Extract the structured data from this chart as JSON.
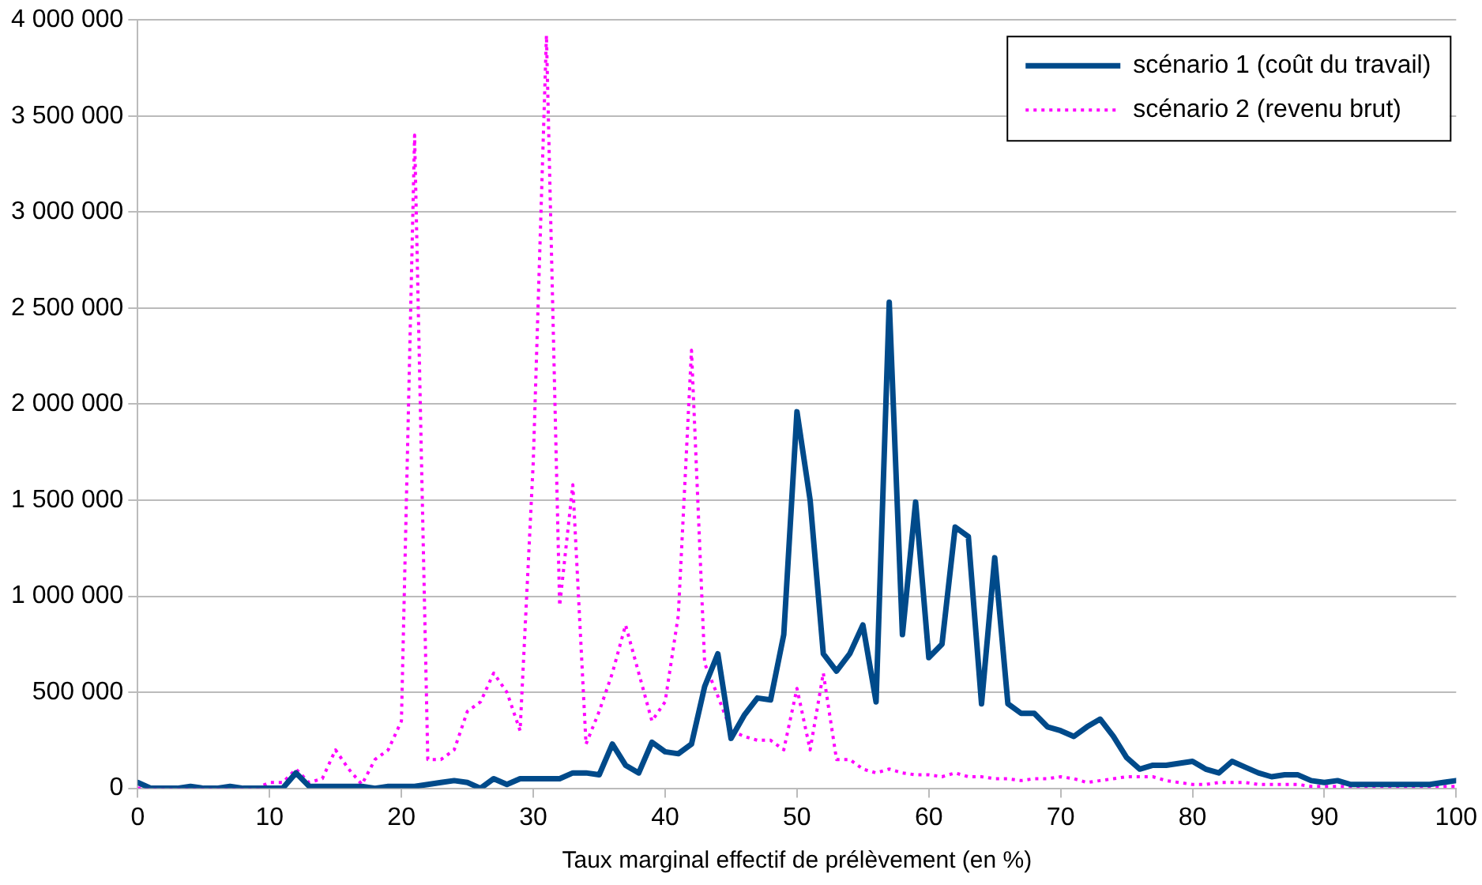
{
  "chart_data": {
    "type": "line",
    "xlabel": "Taux marginal effectif de prélèvement (en %)",
    "x": [
      0,
      1,
      2,
      3,
      4,
      5,
      6,
      7,
      8,
      9,
      10,
      11,
      12,
      13,
      14,
      15,
      16,
      17,
      18,
      19,
      20,
      21,
      22,
      23,
      24,
      25,
      26,
      27,
      28,
      29,
      30,
      31,
      32,
      33,
      34,
      35,
      36,
      37,
      38,
      39,
      40,
      41,
      42,
      43,
      44,
      45,
      46,
      47,
      48,
      49,
      50,
      51,
      52,
      53,
      54,
      55,
      56,
      57,
      58,
      59,
      60,
      61,
      62,
      63,
      64,
      65,
      66,
      67,
      68,
      69,
      70,
      71,
      72,
      73,
      74,
      75,
      76,
      77,
      78,
      79,
      80,
      81,
      82,
      83,
      84,
      85,
      86,
      87,
      88,
      89,
      90,
      91,
      92,
      93,
      94,
      95,
      96,
      97,
      98,
      99,
      100
    ],
    "series": [
      {
        "name": "scénario 1 (coût du travail)",
        "color": "#004a8a",
        "line_style": "solid",
        "values": [
          30000,
          0,
          0,
          0,
          10000,
          0,
          0,
          10000,
          0,
          0,
          0,
          0,
          80000,
          10000,
          10000,
          10000,
          10000,
          10000,
          0,
          10000,
          10000,
          10000,
          20000,
          30000,
          40000,
          30000,
          0,
          50000,
          20000,
          50000,
          50000,
          50000,
          50000,
          80000,
          80000,
          70000,
          230000,
          120000,
          80000,
          240000,
          190000,
          180000,
          230000,
          530000,
          700000,
          260000,
          380000,
          470000,
          460000,
          800000,
          1960000,
          1500000,
          700000,
          610000,
          700000,
          850000,
          450000,
          2530000,
          800000,
          1490000,
          680000,
          750000,
          1360000,
          1310000,
          440000,
          1200000,
          440000,
          390000,
          390000,
          320000,
          300000,
          270000,
          320000,
          360000,
          270000,
          160000,
          100000,
          120000,
          120000,
          130000,
          140000,
          100000,
          80000,
          140000,
          110000,
          80000,
          60000,
          70000,
          70000,
          40000,
          30000,
          40000,
          20000,
          20000,
          20000,
          20000,
          20000,
          20000,
          20000,
          30000,
          40000
        ]
      },
      {
        "name": "scénario 2 (revenu brut)",
        "color": "#ff00ff",
        "line_style": "dotted",
        "values": [
          0,
          0,
          0,
          0,
          0,
          0,
          0,
          0,
          0,
          0,
          30000,
          30000,
          100000,
          30000,
          50000,
          200000,
          100000,
          20000,
          150000,
          200000,
          350000,
          3400000,
          150000,
          150000,
          200000,
          400000,
          450000,
          600000,
          500000,
          300000,
          1700000,
          3920000,
          950000,
          1580000,
          230000,
          400000,
          600000,
          850000,
          600000,
          350000,
          450000,
          900000,
          2280000,
          650000,
          480000,
          300000,
          270000,
          250000,
          250000,
          200000,
          520000,
          200000,
          600000,
          150000,
          150000,
          100000,
          80000,
          100000,
          80000,
          70000,
          70000,
          60000,
          80000,
          60000,
          60000,
          50000,
          50000,
          40000,
          50000,
          50000,
          60000,
          50000,
          30000,
          40000,
          50000,
          60000,
          60000,
          60000,
          40000,
          30000,
          20000,
          20000,
          30000,
          30000,
          30000,
          20000,
          20000,
          20000,
          20000,
          10000,
          10000,
          10000,
          10000,
          10000,
          10000,
          10000,
          10000,
          10000,
          10000,
          10000,
          10000
        ]
      }
    ],
    "xlim": [
      0,
      100
    ],
    "xticks": [
      0,
      10,
      20,
      30,
      40,
      50,
      60,
      70,
      80,
      90,
      100
    ],
    "ylim": [
      0,
      4000000
    ],
    "yticks": [
      0,
      {
        "value": 500000,
        "label": "500 000"
      },
      {
        "value": 1000000,
        "label": "1 000 000"
      },
      {
        "value": 1500000,
        "label": "1 500 000"
      },
      {
        "value": 2000000,
        "label": "2 000 000"
      },
      {
        "value": 2500000,
        "label": "2 500 000"
      },
      {
        "value": 3000000,
        "label": "3 000 000"
      },
      {
        "value": 3500000,
        "label": "3 500 000"
      },
      {
        "value": 4000000,
        "label": "4 000 000"
      }
    ],
    "grid": "y",
    "legend": "top right",
    "marker": "none"
  }
}
